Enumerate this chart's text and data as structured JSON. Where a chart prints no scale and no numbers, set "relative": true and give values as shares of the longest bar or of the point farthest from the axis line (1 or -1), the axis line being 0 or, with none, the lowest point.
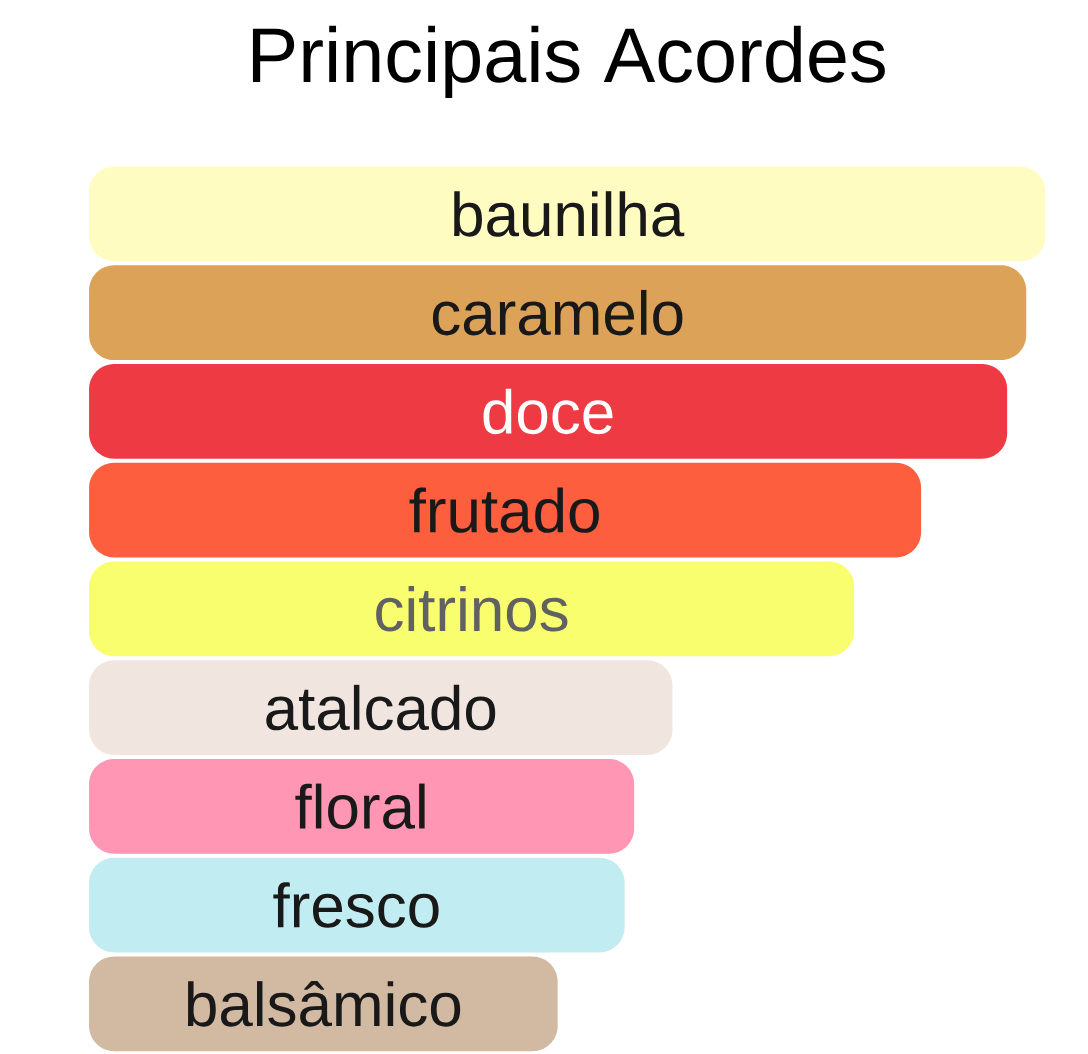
{
  "chart_data": {
    "type": "bar",
    "orientation": "horizontal",
    "relative": true,
    "title": "Principais Acordes",
    "categories": [
      "baunilha",
      "caramelo",
      "doce",
      "frutado",
      "citrinos",
      "atalcado",
      "floral",
      "fresco",
      "balsâmico"
    ],
    "values": [
      1,
      0.98,
      0.96,
      0.87,
      0.8,
      0.61,
      0.57,
      0.56,
      0.49
    ],
    "colors": [
      "#fefcc0",
      "#dca257",
      "#ee3b43",
      "#fd5e3e",
      "#f9fe6f",
      "#f0e6df",
      "#ff96b4",
      "#c1ecf1",
      "#d2b9a1"
    ]
  }
}
